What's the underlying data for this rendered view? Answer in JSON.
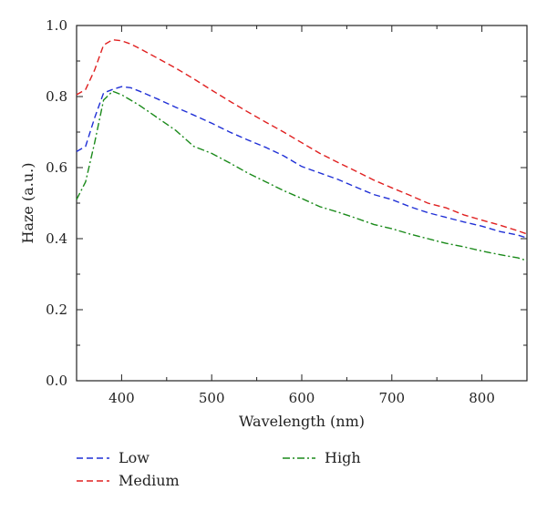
{
  "chart_data": {
    "type": "line",
    "title": "",
    "xlabel": "Wavelength (nm)",
    "ylabel": "Haze (a.u.)",
    "xlim": [
      350,
      850
    ],
    "ylim": [
      0.0,
      1.0
    ],
    "xticks": [
      400,
      500,
      600,
      700,
      800
    ],
    "yticks": [
      0.0,
      0.2,
      0.4,
      0.6,
      0.8,
      1.0
    ],
    "ytick_labels": [
      "0.0",
      "0.2",
      "0.4",
      "0.6",
      "0.8",
      "1.0"
    ],
    "grid": false,
    "legend_position": "bottom, below plot",
    "series": [
      {
        "name": "Low",
        "color": "#1f2fd6",
        "dash": "dashed",
        "x": [
          350,
          360,
          370,
          380,
          390,
          400,
          410,
          420,
          440,
          460,
          480,
          500,
          520,
          540,
          560,
          580,
          600,
          620,
          640,
          660,
          680,
          700,
          720,
          740,
          760,
          780,
          800,
          820,
          840,
          850
        ],
        "y": [
          0.645,
          0.66,
          0.74,
          0.81,
          0.82,
          0.828,
          0.825,
          0.815,
          0.793,
          0.77,
          0.748,
          0.725,
          0.7,
          0.678,
          0.657,
          0.633,
          0.603,
          0.585,
          0.567,
          0.545,
          0.524,
          0.51,
          0.49,
          0.473,
          0.46,
          0.447,
          0.435,
          0.42,
          0.41,
          0.402
        ]
      },
      {
        "name": "Medium",
        "color": "#e02020",
        "dash": "dashed",
        "x": [
          350,
          360,
          370,
          380,
          390,
          400,
          410,
          420,
          440,
          460,
          480,
          500,
          520,
          540,
          560,
          580,
          600,
          620,
          640,
          660,
          680,
          700,
          720,
          740,
          760,
          780,
          800,
          820,
          840,
          850
        ],
        "y": [
          0.805,
          0.82,
          0.875,
          0.945,
          0.96,
          0.957,
          0.948,
          0.935,
          0.908,
          0.88,
          0.85,
          0.818,
          0.787,
          0.757,
          0.728,
          0.7,
          0.67,
          0.64,
          0.615,
          0.59,
          0.565,
          0.543,
          0.522,
          0.5,
          0.487,
          0.467,
          0.452,
          0.438,
          0.422,
          0.413
        ]
      },
      {
        "name": "High",
        "color": "#1a8a1a",
        "dash": "dashdot",
        "x": [
          350,
          360,
          370,
          380,
          390,
          400,
          410,
          420,
          440,
          460,
          480,
          500,
          520,
          540,
          560,
          580,
          600,
          620,
          640,
          660,
          680,
          700,
          720,
          740,
          760,
          780,
          800,
          820,
          840,
          850
        ],
        "y": [
          0.51,
          0.56,
          0.67,
          0.79,
          0.815,
          0.805,
          0.79,
          0.775,
          0.74,
          0.705,
          0.66,
          0.64,
          0.613,
          0.585,
          0.56,
          0.535,
          0.513,
          0.49,
          0.475,
          0.458,
          0.44,
          0.428,
          0.413,
          0.4,
          0.387,
          0.377,
          0.365,
          0.355,
          0.346,
          0.338
        ]
      }
    ]
  }
}
